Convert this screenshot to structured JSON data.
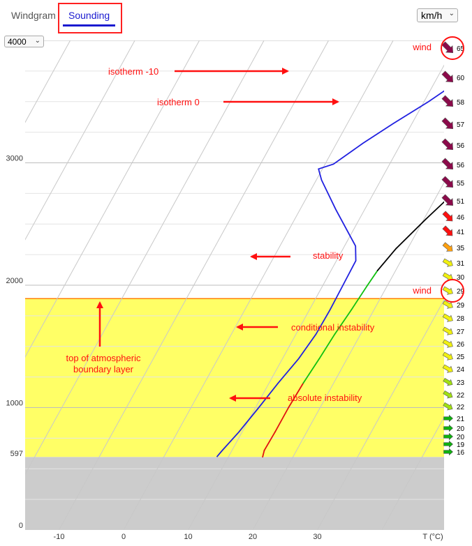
{
  "tabs": {
    "windgram": "Windgram",
    "sounding": "Sounding"
  },
  "altitude_select": {
    "value": "4000"
  },
  "unit_select": {
    "value": "km/h"
  },
  "chart_data": {
    "type": "line",
    "title": "",
    "xlabel": "T (°C)",
    "ylabel": "",
    "x_ticks": [
      -10,
      0,
      10,
      20,
      30
    ],
    "y_ticks": [
      0,
      1000,
      2000,
      3000
    ],
    "ylim": [
      0,
      4000
    ],
    "ground_label": "597",
    "ground_altitude": 597,
    "boundary_layer_top": 1890,
    "series": [
      {
        "color": "#2020e0",
        "points": [
          [
            8.2,
            597
          ],
          [
            8.5,
            650
          ],
          [
            9.5,
            800
          ],
          [
            10.5,
            1000
          ],
          [
            11.4,
            1200
          ],
          [
            12.5,
            1400
          ],
          [
            13.1,
            1600
          ],
          [
            13.2,
            1800
          ],
          [
            13.1,
            2000
          ],
          [
            13.0,
            2200
          ],
          [
            11.7,
            2320
          ],
          [
            5.5,
            2620
          ],
          [
            0.8,
            2860
          ],
          [
            -0.6,
            2950
          ],
          [
            1.3,
            2990
          ],
          [
            4.1,
            3160
          ],
          [
            7.1,
            3320
          ],
          [
            10.7,
            3500
          ],
          [
            15.2,
            3760
          ],
          [
            17.7,
            4000
          ]
        ]
      },
      {
        "color": "#000000",
        "points": [
          [
            15.3,
            597
          ],
          [
            15.0,
            650
          ],
          [
            15.1,
            800
          ],
          [
            15.1,
            1000
          ],
          [
            15.3,
            1200
          ],
          [
            15.7,
            1400
          ],
          [
            16.0,
            1600
          ],
          [
            16.5,
            1800
          ],
          [
            16.9,
            2000
          ],
          [
            17.2,
            2120
          ],
          [
            18.2,
            2300
          ],
          [
            20.3,
            2540
          ],
          [
            23.6,
            2880
          ],
          [
            25.4,
            3080
          ],
          [
            27.0,
            3300
          ],
          [
            28.5,
            3560
          ],
          [
            29.3,
            3760
          ],
          [
            30.1,
            4000
          ]
        ]
      }
    ],
    "lapse_rate_colors": {
      "absolute_instability": "#e01010",
      "conditional_instability": "#10c010",
      "stability": "#000000"
    },
    "wind_speeds": [
      16,
      19,
      20,
      20,
      21,
      22,
      22,
      23,
      24,
      25,
      26,
      27,
      28,
      29,
      29,
      30,
      31,
      35,
      41,
      46,
      51,
      55,
      56,
      56,
      57,
      58,
      60,
      65
    ]
  },
  "annotations": {
    "wind_top": "wind",
    "wind_mid": "wind",
    "isotherm_minus10": "isotherm -10",
    "isotherm_0": "isotherm 0",
    "stability": "stability",
    "conditional_instability": "conditional instability",
    "absolute_instability": "absolute instability",
    "boundary_layer": [
      "top of atmospheric",
      "boundary layer"
    ]
  }
}
